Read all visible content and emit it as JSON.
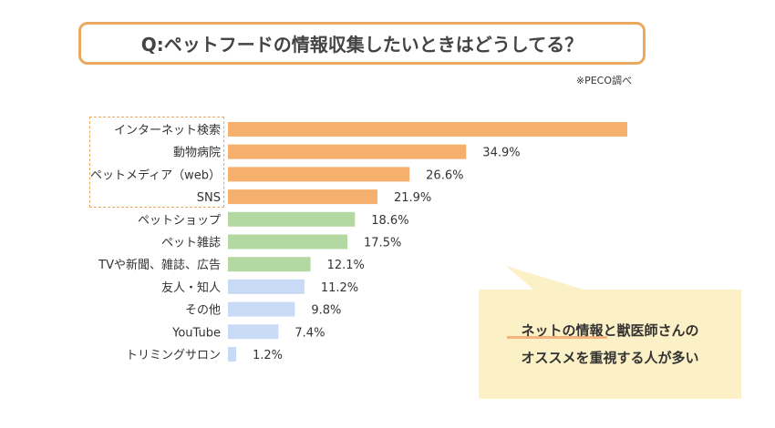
{
  "title": "Q:ペットフードの情報収集したいときはどうしてる？",
  "source": "※PECO調べ",
  "callout": {
    "line1": "ネットの情報と獣医師さんの",
    "line2": "オススメを重視する人が多い"
  },
  "colors": {
    "orange": "#F5B06E",
    "green": "#B4D8A2",
    "blue": "#C9DAF6",
    "accent_border": "#EAA95E",
    "callout_bg": "#FCF0C6"
  },
  "chart_data": {
    "type": "bar",
    "orientation": "horizontal",
    "title": "Q:ペットフードの情報収集したいときはどうしてる？",
    "categories": [
      "インターネット検索",
      "動物病院",
      "ペットメディア（web）",
      "SNS",
      "ペットショップ",
      "ペット雑誌",
      "TVや新聞、雑誌、広告",
      "友人・知人",
      "その他",
      "YouTube",
      "トリミングサロン"
    ],
    "values": [
      58.5,
      34.9,
      26.6,
      21.9,
      18.6,
      17.5,
      12.1,
      11.2,
      9.8,
      7.4,
      1.2
    ],
    "labels": [
      "",
      "34.9%",
      "26.6%",
      "21.9%",
      "18.6%",
      "17.5%",
      "12.1%",
      "11.2%",
      "9.8%",
      "7.4%",
      "1.2%"
    ],
    "color_groups": [
      "orange",
      "orange",
      "orange",
      "orange",
      "green",
      "green",
      "green",
      "blue",
      "blue",
      "blue",
      "blue"
    ],
    "xlim": [
      0,
      60
    ],
    "unit": "%",
    "grid": false
  }
}
